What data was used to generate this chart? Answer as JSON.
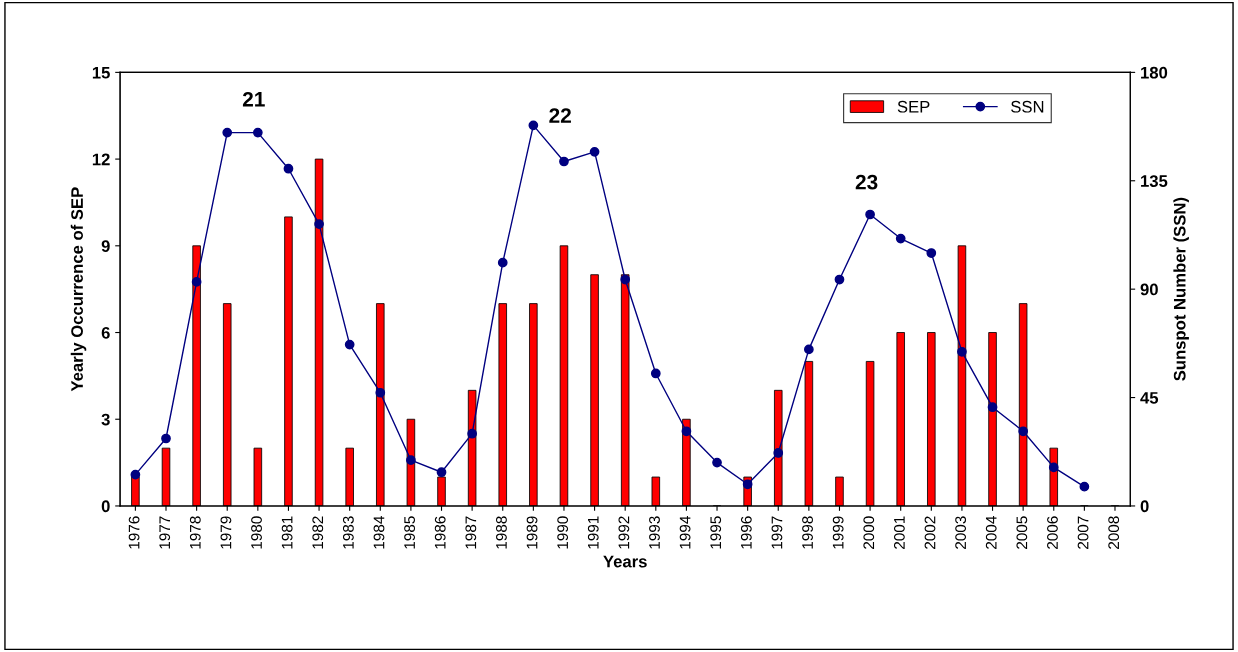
{
  "chart_data": {
    "type": "bar",
    "xlabel": "Years",
    "ylabel": "Yearly Occurrence of SEP",
    "y2label": "Sunspot Number (SSN)",
    "categories": [
      "1976",
      "1977",
      "1978",
      "1979",
      "1980",
      "1981",
      "1982",
      "1983",
      "1984",
      "1985",
      "1986",
      "1987",
      "1988",
      "1989",
      "1990",
      "1991",
      "1992",
      "1993",
      "1994",
      "1995",
      "1996",
      "1997",
      "1998",
      "1999",
      "2000",
      "2001",
      "2002",
      "2003",
      "2004",
      "2005",
      "2006",
      "2007",
      "2008"
    ],
    "series": [
      {
        "name": "SEP",
        "color": "#ff0000",
        "values": [
          1,
          2,
          9,
          7,
          2,
          10,
          12,
          2,
          7,
          3,
          1,
          4,
          7,
          7,
          9,
          8,
          8,
          1,
          3,
          0,
          1,
          4,
          5,
          1,
          5,
          6,
          6,
          9,
          6,
          7,
          2,
          0,
          0
        ]
      },
      {
        "name": "SSN",
        "type": "line",
        "axis": "y2",
        "color": "#000080",
        "marker": "circle",
        "values": [
          13,
          28,
          93,
          155,
          155,
          140,
          117,
          67,
          47,
          19,
          14,
          30,
          101,
          158,
          143,
          147,
          94,
          55,
          31,
          18,
          9,
          22,
          65,
          94,
          121,
          111,
          105,
          64,
          41,
          31,
          16,
          8,
          null
        ]
      }
    ],
    "ylim": [
      0,
      15
    ],
    "yticks": [
      0,
      3,
      6,
      9,
      12,
      15
    ],
    "y2lim": [
      0,
      180
    ],
    "y2ticks": [
      0,
      45,
      90,
      135,
      180
    ],
    "legend": "top right",
    "grid": false,
    "annotations": [
      "21",
      "22",
      "23"
    ]
  }
}
